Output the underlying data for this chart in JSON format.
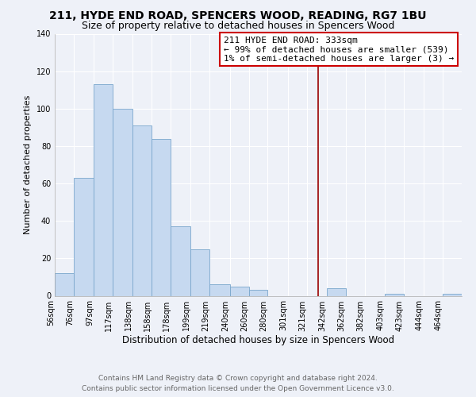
{
  "title": "211, HYDE END ROAD, SPENCERS WOOD, READING, RG7 1BU",
  "subtitle": "Size of property relative to detached houses in Spencers Wood",
  "xlabel": "Distribution of detached houses by size in Spencers Wood",
  "ylabel": "Number of detached properties",
  "bin_labels": [
    "56sqm",
    "76sqm",
    "97sqm",
    "117sqm",
    "138sqm",
    "158sqm",
    "178sqm",
    "199sqm",
    "219sqm",
    "240sqm",
    "260sqm",
    "280sqm",
    "301sqm",
    "321sqm",
    "342sqm",
    "362sqm",
    "382sqm",
    "403sqm",
    "423sqm",
    "444sqm",
    "464sqm"
  ],
  "bar_heights": [
    12,
    63,
    113,
    100,
    91,
    84,
    37,
    25,
    6,
    5,
    3,
    0,
    0,
    0,
    4,
    0,
    0,
    1,
    0,
    0,
    1
  ],
  "bar_color": "#c6d9f0",
  "bar_edge_color": "#7aa6cc",
  "bin_edges": [
    56,
    76,
    97,
    117,
    138,
    158,
    178,
    199,
    219,
    240,
    260,
    280,
    301,
    321,
    342,
    362,
    382,
    403,
    423,
    444,
    464,
    484
  ],
  "reference_line_x": 333,
  "annotation_title": "211 HYDE END ROAD: 333sqm",
  "annotation_line1": "← 99% of detached houses are smaller (539)",
  "annotation_line2": "1% of semi-detached houses are larger (3) →",
  "annotation_box_color": "#ffffff",
  "annotation_border_color": "#cc0000",
  "red_line_color": "#990000",
  "ylim": [
    0,
    140
  ],
  "yticks": [
    0,
    20,
    40,
    60,
    80,
    100,
    120,
    140
  ],
  "background_color": "#eef1f8",
  "grid_color": "#ffffff",
  "footer_line1": "Contains HM Land Registry data © Crown copyright and database right 2024.",
  "footer_line2": "Contains public sector information licensed under the Open Government Licence v3.0.",
  "title_fontsize": 10,
  "subtitle_fontsize": 9,
  "xlabel_fontsize": 8.5,
  "ylabel_fontsize": 8,
  "tick_fontsize": 7,
  "annotation_fontsize": 8,
  "footer_fontsize": 6.5
}
